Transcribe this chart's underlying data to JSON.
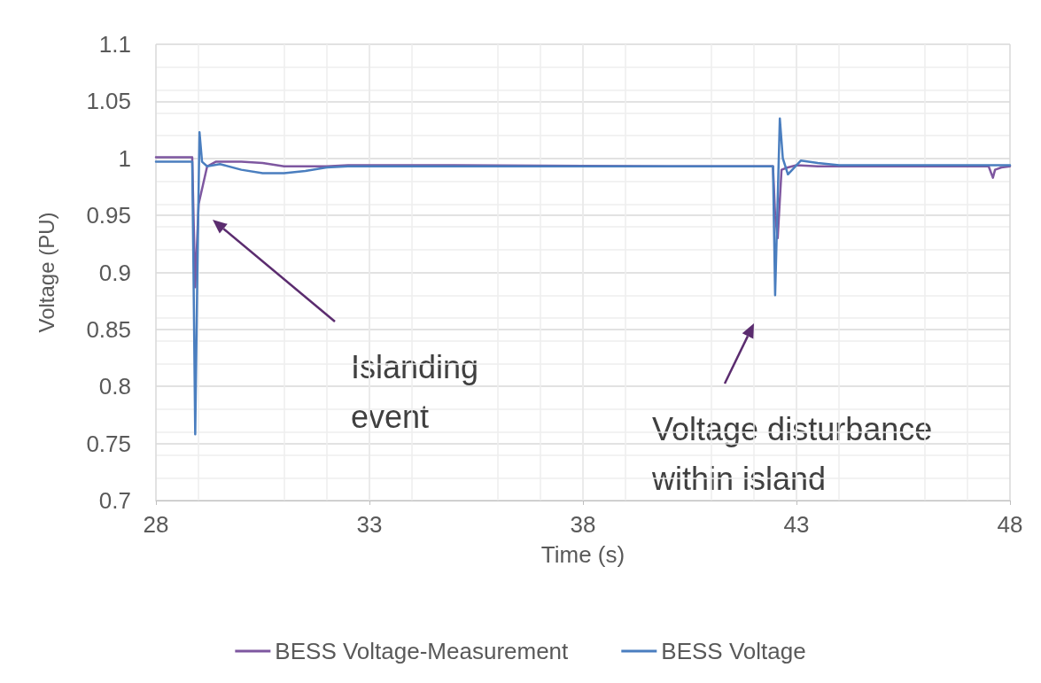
{
  "chart_data": {
    "type": "line",
    "xlabel": "Time (s)",
    "ylabel": "Voltage (PU)",
    "xlim": [
      28,
      48
    ],
    "xticks": [
      28,
      33,
      38,
      43,
      48
    ],
    "ylim": [
      0.7,
      1.1
    ],
    "yticks": [
      0.7,
      0.75,
      0.8,
      0.85,
      0.9,
      0.95,
      1,
      1.05,
      1.1
    ],
    "grid": true,
    "legend": "bottom",
    "marker": "none",
    "line_style": "solid",
    "annotations": [
      "Islanding event",
      "Voltage disturbance within island"
    ],
    "series": [
      {
        "name": "BESS Voltage-Measurement",
        "color": "#7e57a0",
        "x": [
          28,
          28.85,
          28.88,
          28.92,
          29.0,
          29.2,
          29.4,
          30.0,
          30.5,
          31.0,
          32.0,
          32.5,
          35,
          40,
          42.45,
          42.5,
          42.56,
          42.65,
          42.8,
          43.0,
          43.5,
          44,
          47.5,
          47.6,
          47.65,
          47.8,
          48
        ],
        "values": [
          1.001,
          1.001,
          0.95,
          0.887,
          0.96,
          0.993,
          0.997,
          0.997,
          0.996,
          0.993,
          0.993,
          0.994,
          0.994,
          0.993,
          0.993,
          0.95,
          0.93,
          0.99,
          0.992,
          0.994,
          0.993,
          0.993,
          0.993,
          0.983,
          0.99,
          0.992,
          0.993
        ]
      },
      {
        "name": "BESS Voltage",
        "color": "#4a7ebf",
        "x": [
          28,
          28.85,
          28.88,
          28.92,
          28.97,
          29.02,
          29.08,
          29.2,
          29.5,
          30.0,
          30.5,
          31.0,
          31.5,
          32.0,
          32.5,
          35,
          40,
          42.45,
          42.5,
          42.55,
          42.61,
          42.68,
          42.8,
          43.1,
          43.5,
          44,
          48
        ],
        "values": [
          0.997,
          0.997,
          0.9,
          0.758,
          0.9,
          1.023,
          0.997,
          0.993,
          0.995,
          0.99,
          0.987,
          0.987,
          0.989,
          0.992,
          0.993,
          0.993,
          0.993,
          0.993,
          0.88,
          0.95,
          1.035,
          1.0,
          0.986,
          0.998,
          0.996,
          0.994,
          0.994
        ]
      }
    ]
  }
}
